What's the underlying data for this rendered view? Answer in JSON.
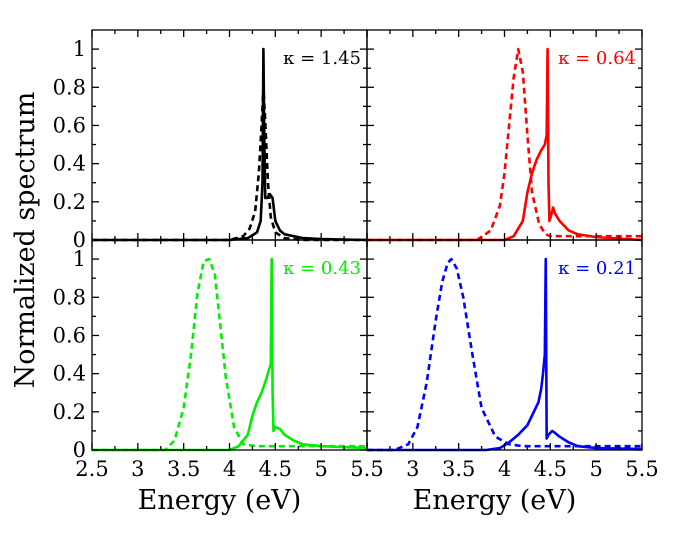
{
  "chart_data": {
    "type": "line",
    "layout": "2x2 shared axes",
    "xlabel": "Energy (eV)",
    "ylabel": "Normalized spectrum",
    "xlim": [
      2.5,
      5.5
    ],
    "ylim": [
      0,
      1.1
    ],
    "x_ticks": [
      "2.5",
      "3",
      "3.5",
      "4",
      "4.5",
      "5",
      "5.5"
    ],
    "y_ticks": [
      "0",
      "0.2",
      "0.4",
      "0.6",
      "0.8",
      "1"
    ],
    "grid": false,
    "panels": [
      {
        "label": "κ = 1.45",
        "color": "#000000",
        "series": [
          {
            "style": "dashed",
            "x": [
              2.5,
              4.0,
              4.15,
              4.22,
              4.28,
              4.32,
              4.35,
              4.37,
              4.39,
              4.42,
              4.45,
              4.5,
              4.6,
              4.8,
              5.5
            ],
            "y": [
              0,
              0,
              0.02,
              0.06,
              0.15,
              0.35,
              0.6,
              0.8,
              0.62,
              0.3,
              0.12,
              0.04,
              0.01,
              0,
              0
            ]
          },
          {
            "style": "solid",
            "x": [
              2.5,
              4.0,
              4.2,
              4.3,
              4.34,
              4.36,
              4.37,
              4.38,
              4.39,
              4.41,
              4.44,
              4.47,
              4.5,
              4.55,
              4.6,
              4.7,
              4.8,
              5.0,
              5.5
            ],
            "y": [
              0,
              0,
              0.01,
              0.04,
              0.1,
              0.3,
              1.0,
              0.5,
              0.22,
              0.22,
              0.24,
              0.22,
              0.1,
              0.05,
              0.03,
              0.02,
              0.01,
              0.005,
              0
            ]
          }
        ]
      },
      {
        "label": "κ = 0.64",
        "color": "#ff0000",
        "series": [
          {
            "style": "dashed",
            "x": [
              2.5,
              3.7,
              3.85,
              3.95,
              4.0,
              4.05,
              4.1,
              4.15,
              4.2,
              4.25,
              4.3,
              4.38,
              4.45,
              4.5,
              4.6,
              5.5
            ],
            "y": [
              0,
              0,
              0.05,
              0.18,
              0.35,
              0.6,
              0.85,
              1.0,
              0.88,
              0.55,
              0.25,
              0.08,
              0.03,
              0.02,
              0.02,
              0.02
            ]
          },
          {
            "style": "solid",
            "x": [
              2.5,
              4.0,
              4.1,
              4.2,
              4.25,
              4.3,
              4.35,
              4.4,
              4.44,
              4.46,
              4.47,
              4.48,
              4.49,
              4.51,
              4.53,
              4.55,
              4.6,
              4.7,
              4.8,
              5.0,
              5.5
            ],
            "y": [
              0,
              0,
              0.02,
              0.1,
              0.25,
              0.35,
              0.42,
              0.47,
              0.5,
              0.55,
              1.0,
              0.3,
              0.1,
              0.13,
              0.17,
              0.14,
              0.1,
              0.05,
              0.03,
              0.015,
              0
            ]
          }
        ]
      },
      {
        "label": "κ = 0.43",
        "color": "#00ee00",
        "series": [
          {
            "style": "dashed",
            "x": [
              2.5,
              3.3,
              3.4,
              3.5,
              3.58,
              3.65,
              3.72,
              3.78,
              3.84,
              3.9,
              3.96,
              4.05,
              4.15,
              4.3,
              4.5,
              5.5
            ],
            "y": [
              0,
              0,
              0.05,
              0.22,
              0.5,
              0.82,
              0.99,
              1.0,
              0.92,
              0.65,
              0.38,
              0.12,
              0.03,
              0.02,
              0.02,
              0.02
            ]
          },
          {
            "style": "solid",
            "x": [
              2.5,
              4.0,
              4.1,
              4.2,
              4.25,
              4.3,
              4.35,
              4.4,
              4.43,
              4.45,
              4.46,
              4.47,
              4.48,
              4.5,
              4.55,
              4.6,
              4.7,
              4.8,
              5.0,
              5.5
            ],
            "y": [
              0,
              0,
              0.02,
              0.08,
              0.18,
              0.25,
              0.3,
              0.37,
              0.42,
              0.45,
              1.0,
              0.3,
              0.1,
              0.12,
              0.11,
              0.08,
              0.05,
              0.03,
              0.02,
              0.01
            ]
          }
        ]
      },
      {
        "label": "κ = 0.21",
        "color": "#0000ff",
        "series": [
          {
            "style": "dashed",
            "x": [
              2.5,
              2.8,
              2.95,
              3.05,
              3.15,
              3.25,
              3.32,
              3.38,
              3.42,
              3.48,
              3.55,
              3.65,
              3.75,
              3.9,
              4.05,
              4.2,
              4.5,
              5.5
            ],
            "y": [
              0,
              0,
              0.03,
              0.12,
              0.35,
              0.68,
              0.88,
              0.98,
              1.0,
              0.95,
              0.8,
              0.5,
              0.22,
              0.07,
              0.03,
              0.02,
              0.02,
              0.02
            ]
          },
          {
            "style": "solid",
            "x": [
              2.5,
              3.8,
              3.95,
              4.05,
              4.15,
              4.25,
              4.32,
              4.37,
              4.4,
              4.42,
              4.44,
              4.45,
              4.46,
              4.48,
              4.52,
              4.55,
              4.6,
              4.7,
              4.8,
              5.0,
              5.5
            ],
            "y": [
              0,
              0,
              0.01,
              0.04,
              0.08,
              0.13,
              0.2,
              0.25,
              0.32,
              0.4,
              0.5,
              1.0,
              0.06,
              0.08,
              0.1,
              0.09,
              0.07,
              0.04,
              0.02,
              0.01,
              0.005
            ]
          }
        ]
      }
    ]
  }
}
